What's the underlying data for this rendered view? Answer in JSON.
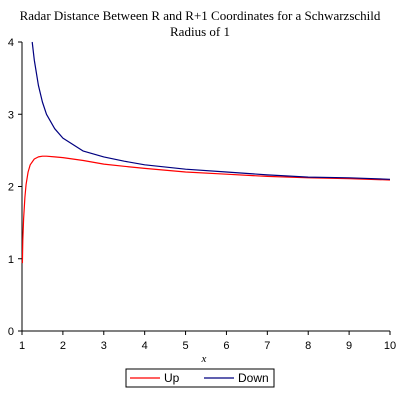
{
  "chart_data": {
    "type": "line",
    "title_lines": [
      "Radar Distance Between R and R+1 Coordinates for  a Schwarzschild",
      "Radius of 1"
    ],
    "xlabel": "x",
    "ylabel": "",
    "xlim": [
      1,
      10
    ],
    "ylim": [
      0,
      4
    ],
    "x_ticks": [
      1,
      2,
      3,
      4,
      5,
      6,
      7,
      8,
      9,
      10
    ],
    "y_ticks": [
      0,
      1,
      2,
      3,
      4
    ],
    "grid": false,
    "legend_position": "bottom",
    "series": [
      {
        "name": "Up",
        "color": "#ff0000",
        "points": [
          [
            1.01,
            0.94
          ],
          [
            1.02,
            1.25
          ],
          [
            1.04,
            1.55
          ],
          [
            1.07,
            1.85
          ],
          [
            1.1,
            2.03
          ],
          [
            1.15,
            2.2
          ],
          [
            1.2,
            2.3
          ],
          [
            1.3,
            2.38
          ],
          [
            1.4,
            2.41
          ],
          [
            1.5,
            2.42
          ],
          [
            1.6,
            2.42
          ],
          [
            1.8,
            2.41
          ],
          [
            2.0,
            2.4
          ],
          [
            2.5,
            2.36
          ],
          [
            3.0,
            2.31
          ],
          [
            3.5,
            2.28
          ],
          [
            4.0,
            2.25
          ],
          [
            5.0,
            2.2
          ],
          [
            6.0,
            2.17
          ],
          [
            7.0,
            2.14
          ],
          [
            8.0,
            2.12
          ],
          [
            9.0,
            2.11
          ],
          [
            10.0,
            2.09
          ]
        ]
      },
      {
        "name": "Down",
        "color": "#000080",
        "points": [
          [
            1.25,
            4.0
          ],
          [
            1.3,
            3.75
          ],
          [
            1.4,
            3.4
          ],
          [
            1.5,
            3.17
          ],
          [
            1.6,
            3.0
          ],
          [
            1.8,
            2.8
          ],
          [
            2.0,
            2.67
          ],
          [
            2.5,
            2.49
          ],
          [
            3.0,
            2.41
          ],
          [
            3.5,
            2.35
          ],
          [
            4.0,
            2.3
          ],
          [
            5.0,
            2.24
          ],
          [
            6.0,
            2.2
          ],
          [
            7.0,
            2.16
          ],
          [
            8.0,
            2.13
          ],
          [
            9.0,
            2.12
          ],
          [
            10.0,
            2.1
          ]
        ]
      }
    ]
  }
}
